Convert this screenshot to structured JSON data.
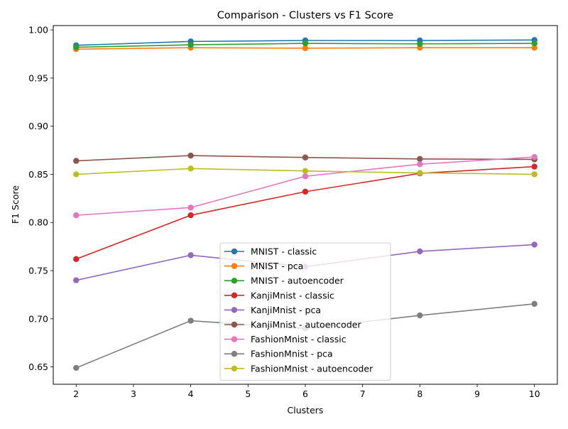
{
  "chart_data": {
    "type": "line",
    "title": "Comparison - Clusters vs F1 Score",
    "xlabel": "Clusters",
    "ylabel": "F1 Score",
    "x": [
      2,
      4,
      6,
      8,
      10
    ],
    "xlim": [
      1.6,
      10.4
    ],
    "ylim": [
      0.632,
      1.0045
    ],
    "xticks": [
      2,
      3,
      4,
      5,
      6,
      7,
      8,
      9,
      10
    ],
    "yticks": [
      0.65,
      0.7,
      0.75,
      0.8,
      0.85,
      0.9,
      0.95,
      1.0
    ],
    "ytick_labels": [
      "0.65",
      "0.70",
      "0.75",
      "0.80",
      "0.85",
      "0.90",
      "0.95",
      "1.00"
    ],
    "grid": false,
    "legend_position": "lower-center",
    "series": [
      {
        "name": "MNIST - classic",
        "color": "#1f77b4",
        "values": [
          0.984,
          0.988,
          0.989,
          0.989,
          0.9895
        ]
      },
      {
        "name": "MNIST - pca",
        "color": "#ff7f0e",
        "values": [
          0.98,
          0.9815,
          0.981,
          0.9815,
          0.9815
        ]
      },
      {
        "name": "MNIST - autoencoder",
        "color": "#2ca02c",
        "values": [
          0.982,
          0.9845,
          0.986,
          0.9855,
          0.986
        ]
      },
      {
        "name": "KanjiMnist - classic",
        "color": "#d62728",
        "values": [
          0.762,
          0.8075,
          0.832,
          0.851,
          0.858
        ]
      },
      {
        "name": "KanjiMnist - pca",
        "color": "#9467bd",
        "values": [
          0.74,
          0.766,
          0.754,
          0.77,
          0.777
        ]
      },
      {
        "name": "KanjiMnist - autoencoder",
        "color": "#8c564b",
        "values": [
          0.864,
          0.8695,
          0.8675,
          0.866,
          0.8655
        ]
      },
      {
        "name": "FashionMnist - classic",
        "color": "#e377c2",
        "values": [
          0.8075,
          0.8155,
          0.848,
          0.8605,
          0.868
        ]
      },
      {
        "name": "FashionMnist - pca",
        "color": "#7f7f7f",
        "values": [
          0.649,
          0.698,
          0.69,
          0.7035,
          0.7155
        ]
      },
      {
        "name": "FashionMnist - autoencoder",
        "color": "#bcbd22",
        "values": [
          0.85,
          0.856,
          0.8535,
          0.8515,
          0.85
        ]
      }
    ]
  }
}
